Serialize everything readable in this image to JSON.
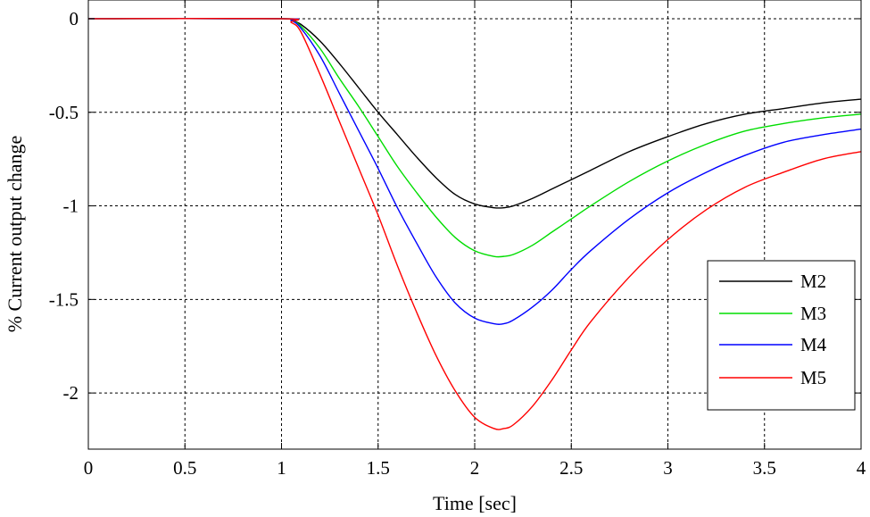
{
  "chart_data": {
    "type": "line",
    "title": "",
    "xlabel": "Time [sec]",
    "ylabel": "% Current output change",
    "xlim": [
      0,
      4
    ],
    "ylim": [
      -2.3,
      0.1
    ],
    "xticks": [
      0,
      0.5,
      1,
      1.5,
      2,
      2.5,
      3,
      3.5,
      4
    ],
    "xtick_labels": [
      "0",
      "0.5",
      "1",
      "1.5",
      "2",
      "2.5",
      "3",
      "3.5",
      "4"
    ],
    "yticks": [
      0,
      -0.5,
      -1,
      -1.5,
      -2
    ],
    "ytick_labels": [
      "0",
      "-0.5",
      "-1",
      "-1.5",
      "-2"
    ],
    "grid": true,
    "legend": "right",
    "x": [
      0,
      1,
      1.05,
      1.1,
      1.2,
      1.3,
      1.4,
      1.5,
      1.6,
      1.7,
      1.8,
      1.9,
      2.0,
      2.1,
      2.15,
      2.2,
      2.3,
      2.4,
      2.5,
      2.6,
      2.8,
      3.0,
      3.2,
      3.4,
      3.6,
      3.8,
      4.0
    ],
    "series": [
      {
        "name": "M2",
        "color": "#000000",
        "values": [
          0,
          0,
          -0.01,
          -0.03,
          -0.12,
          -0.24,
          -0.37,
          -0.5,
          -0.62,
          -0.74,
          -0.85,
          -0.94,
          -0.99,
          -1.01,
          -1.01,
          -1.0,
          -0.96,
          -0.91,
          -0.86,
          -0.81,
          -0.71,
          -0.63,
          -0.56,
          -0.51,
          -0.48,
          -0.45,
          -0.43
        ]
      },
      {
        "name": "M3",
        "color": "#00dd00",
        "values": [
          0,
          0,
          -0.01,
          -0.04,
          -0.16,
          -0.32,
          -0.47,
          -0.63,
          -0.79,
          -0.93,
          -1.06,
          -1.17,
          -1.24,
          -1.27,
          -1.27,
          -1.26,
          -1.21,
          -1.14,
          -1.07,
          -1.0,
          -0.87,
          -0.76,
          -0.67,
          -0.6,
          -0.56,
          -0.53,
          -0.51
        ]
      },
      {
        "name": "M4",
        "color": "#0000ff",
        "values": [
          0,
          0,
          -0.01,
          -0.05,
          -0.2,
          -0.4,
          -0.6,
          -0.8,
          -1.01,
          -1.2,
          -1.38,
          -1.52,
          -1.6,
          -1.63,
          -1.63,
          -1.61,
          -1.54,
          -1.45,
          -1.34,
          -1.24,
          -1.07,
          -0.93,
          -0.82,
          -0.73,
          -0.66,
          -0.62,
          -0.59
        ]
      },
      {
        "name": "M5",
        "color": "#ff0000",
        "values": [
          0,
          0,
          -0.02,
          -0.07,
          -0.3,
          -0.55,
          -0.8,
          -1.05,
          -1.32,
          -1.57,
          -1.8,
          -1.99,
          -2.13,
          -2.19,
          -2.19,
          -2.17,
          -2.07,
          -1.93,
          -1.77,
          -1.62,
          -1.38,
          -1.18,
          -1.02,
          -0.9,
          -0.82,
          -0.75,
          -0.71
        ]
      }
    ]
  }
}
